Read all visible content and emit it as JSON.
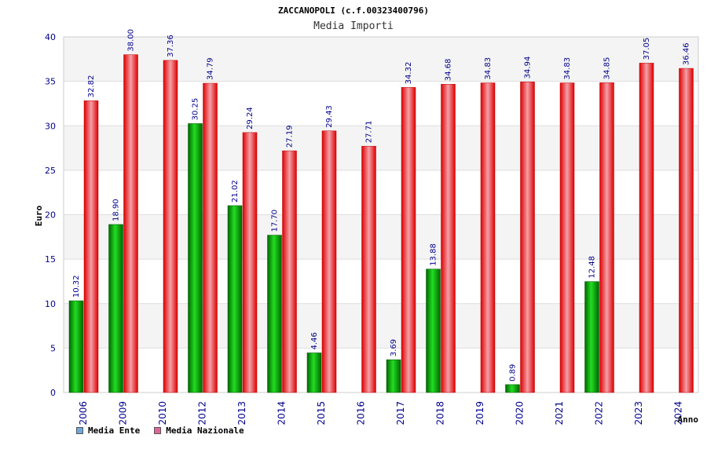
{
  "chart_data": {
    "type": "bar",
    "title": "ZACCANOPOLI (c.f.00323400796)",
    "subtitle": "Media Importi",
    "ylabel": "Euro",
    "xlabel": "Anno",
    "ylim": [
      0,
      40
    ],
    "yticks": [
      0,
      5,
      10,
      15,
      20,
      25,
      30,
      35,
      40
    ],
    "categories": [
      "2006",
      "2009",
      "2010",
      "2012",
      "2013",
      "2014",
      "2015",
      "2016",
      "2017",
      "2018",
      "2019",
      "2020",
      "2021",
      "2022",
      "2023",
      "2024"
    ],
    "series": [
      {
        "name": "Media Ente",
        "color": "#00aa00",
        "values": [
          10.32,
          18.9,
          null,
          30.25,
          21.02,
          17.7,
          4.46,
          null,
          3.69,
          13.88,
          null,
          0.89,
          null,
          12.48,
          null,
          null
        ],
        "labels": [
          "10.32",
          "18.90",
          "",
          "30.25",
          "21.02",
          "17.70",
          "4.46",
          "",
          "3.69",
          "13.88",
          "",
          "0.89",
          "",
          "12.48",
          "",
          ""
        ]
      },
      {
        "name": "Media Nazionale",
        "color": "#ee1111",
        "values": [
          32.82,
          38.0,
          37.36,
          34.79,
          29.24,
          27.19,
          29.43,
          27.71,
          34.32,
          34.68,
          34.83,
          34.94,
          34.83,
          34.85,
          37.05,
          36.46
        ],
        "labels": [
          "32.82",
          "38.00",
          "37.36",
          "34.79",
          "29.24",
          "27.19",
          "29.43",
          "27.71",
          "34.32",
          "34.68",
          "34.83",
          "34.94",
          "34.83",
          "34.85",
          "37.05",
          "36.46"
        ]
      }
    ],
    "legend": [
      {
        "label": "Media Ente",
        "color": "#6fa8dc"
      },
      {
        "label": "Media Nazionale",
        "color": "#e06699"
      }
    ],
    "grid": true,
    "legend_position": "bottom-left"
  }
}
